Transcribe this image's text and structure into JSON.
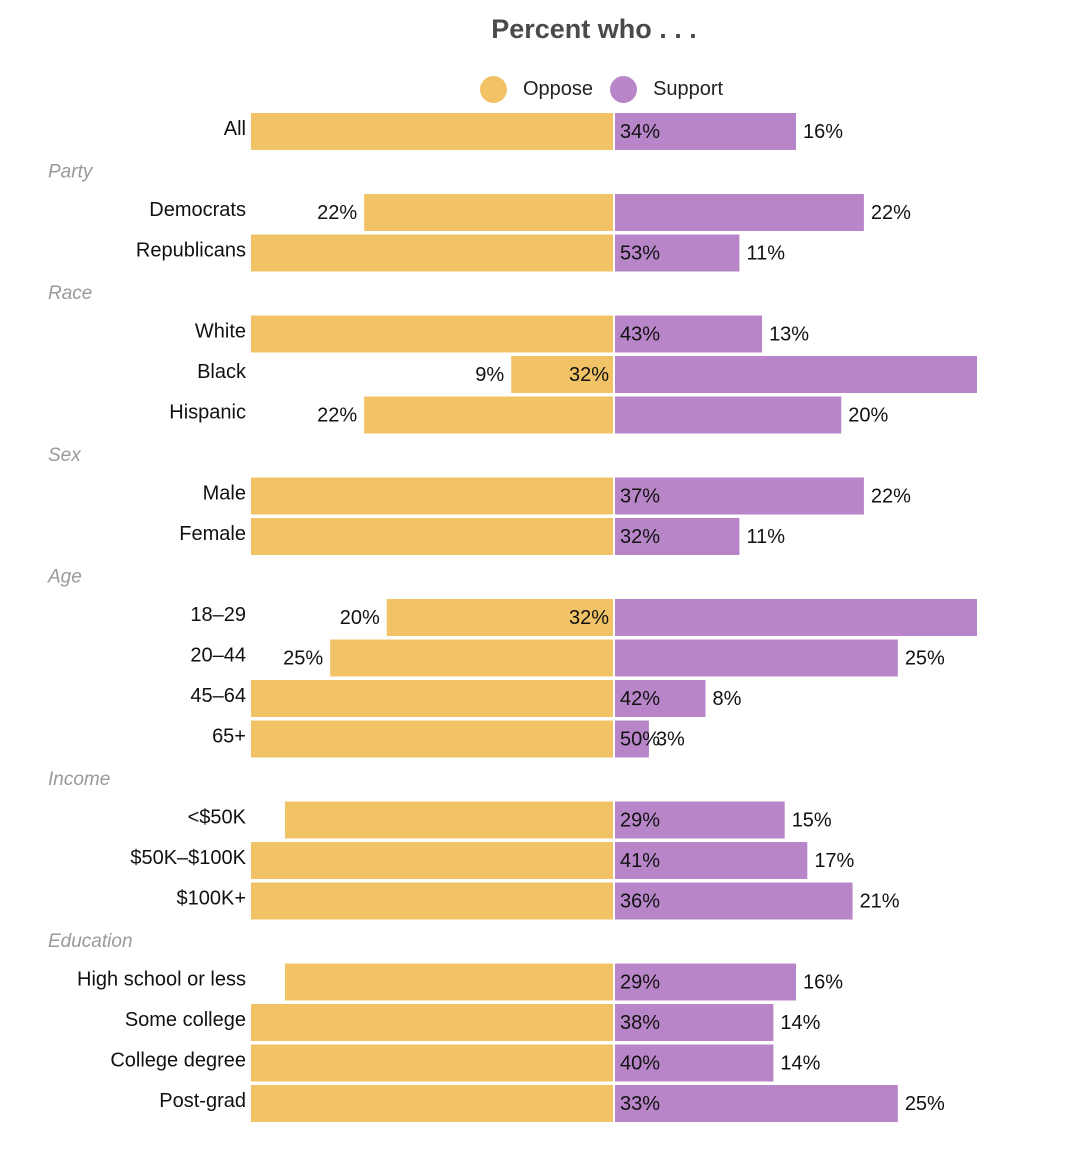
{
  "chart_data": {
    "type": "bar",
    "orientation": "horizontal-diverging",
    "title": "Percent who . . .",
    "legend": {
      "placement": "top",
      "entries": [
        "Oppose",
        "Support"
      ]
    },
    "colors": {
      "Oppose": "#f2c366",
      "Support": "#b886c8"
    },
    "grid": false,
    "axis_visible": false,
    "display_clip_percent": 32,
    "groups": [
      {
        "name": "",
        "rows": [
          {
            "label": "All",
            "oppose": 34,
            "support": 16
          }
        ]
      },
      {
        "name": "Party",
        "rows": [
          {
            "label": "Democrats",
            "oppose": 22,
            "support": 22
          },
          {
            "label": "Republicans",
            "oppose": 53,
            "support": 11
          }
        ]
      },
      {
        "name": "Race",
        "rows": [
          {
            "label": "White",
            "oppose": 43,
            "support": 13
          },
          {
            "label": "Black",
            "oppose": 9,
            "support": 32
          },
          {
            "label": "Hispanic",
            "oppose": 22,
            "support": 20
          }
        ]
      },
      {
        "name": "Sex",
        "rows": [
          {
            "label": "Male",
            "oppose": 37,
            "support": 22
          },
          {
            "label": "Female",
            "oppose": 32,
            "support": 11
          }
        ]
      },
      {
        "name": "Age",
        "rows": [
          {
            "label": "18–29",
            "oppose": 20,
            "support": 32
          },
          {
            "label": "20–44",
            "oppose": 25,
            "support": 25
          },
          {
            "label": "45–64",
            "oppose": 42,
            "support": 8
          },
          {
            "label": "65+",
            "oppose": 50,
            "support": 3
          }
        ]
      },
      {
        "name": "Income",
        "rows": [
          {
            "label": "<$50K",
            "oppose": 29,
            "support": 15
          },
          {
            "label": "$50K–$100K",
            "oppose": 41,
            "support": 17
          },
          {
            "label": "$100K+",
            "oppose": 36,
            "support": 21
          }
        ]
      },
      {
        "name": "Education",
        "rows": [
          {
            "label": "High school or less",
            "oppose": 29,
            "support": 16
          },
          {
            "label": "Some college",
            "oppose": 38,
            "support": 14
          },
          {
            "label": "College degree",
            "oppose": 40,
            "support": 14
          },
          {
            "label": "Post-grad",
            "oppose": 33,
            "support": 25
          }
        ]
      }
    ]
  }
}
